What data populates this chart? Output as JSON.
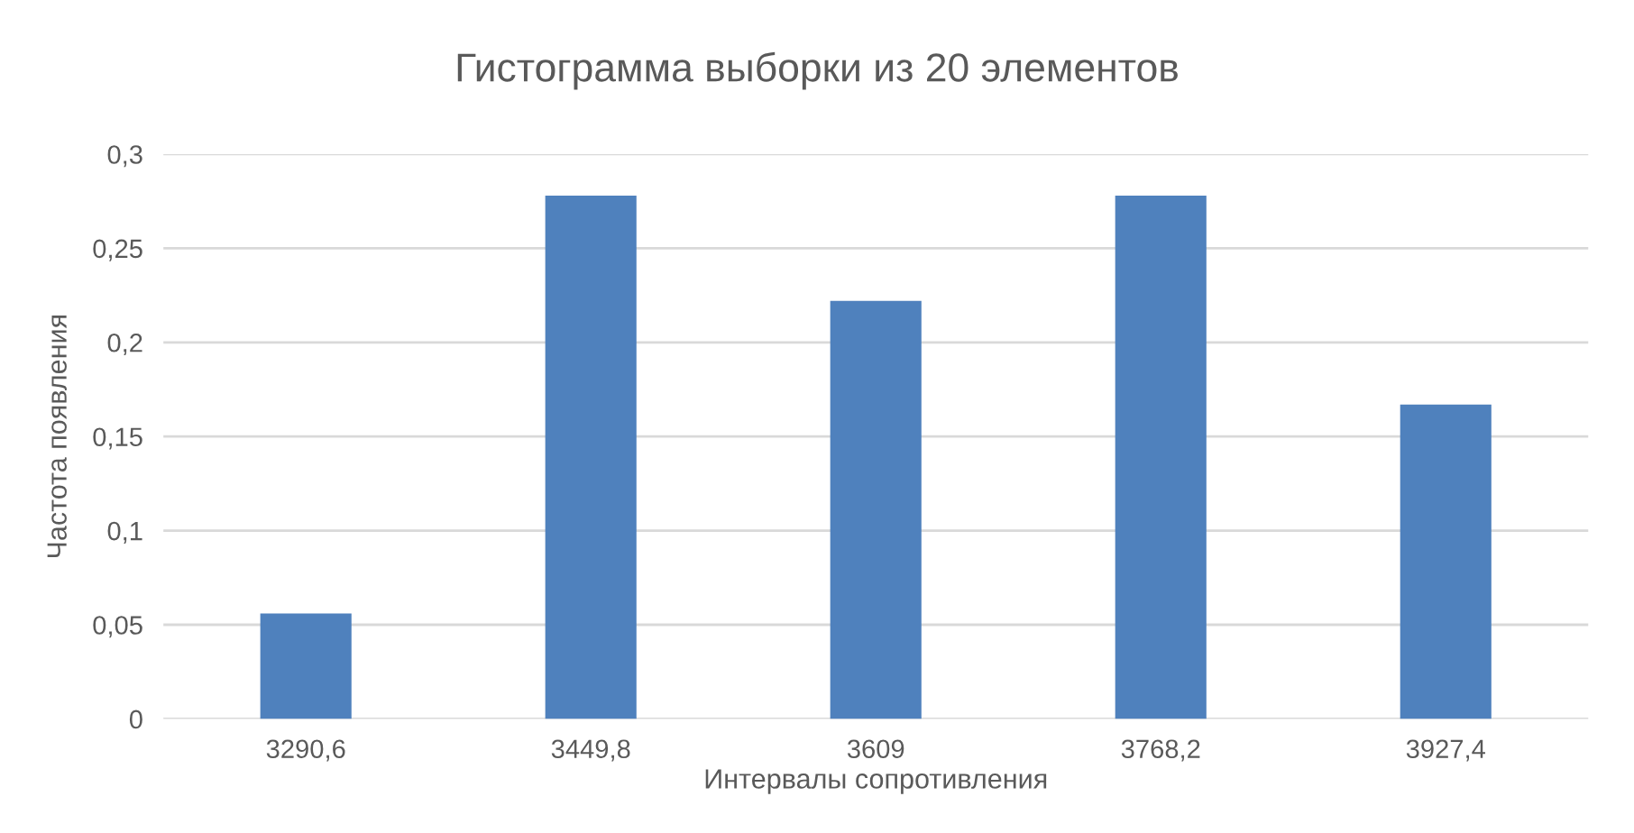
{
  "chart_data": {
    "type": "bar",
    "title": "Гистограмма выборки из 20 элементов",
    "xlabel": "Интервалы сопротивления",
    "ylabel": "Частота появления",
    "categories": [
      "3290,6",
      "3449,8",
      "3609",
      "3768,2",
      "3927,4"
    ],
    "values": [
      0.056,
      0.278,
      0.222,
      0.278,
      0.167
    ],
    "color": "#4f81bd",
    "ylim": [
      0,
      0.3
    ],
    "yticks": [
      0,
      {
        "value": 0.05,
        "label": "0,05"
      },
      {
        "value": 0.1,
        "label": "0,1"
      },
      {
        "value": 0.15,
        "label": "0,15"
      },
      {
        "value": 0.2,
        "label": "0,2"
      },
      {
        "value": 0.25,
        "label": "0,25"
      },
      {
        "value": 0.3,
        "label": "0,3"
      }
    ],
    "grid": "y",
    "legend": false
  }
}
